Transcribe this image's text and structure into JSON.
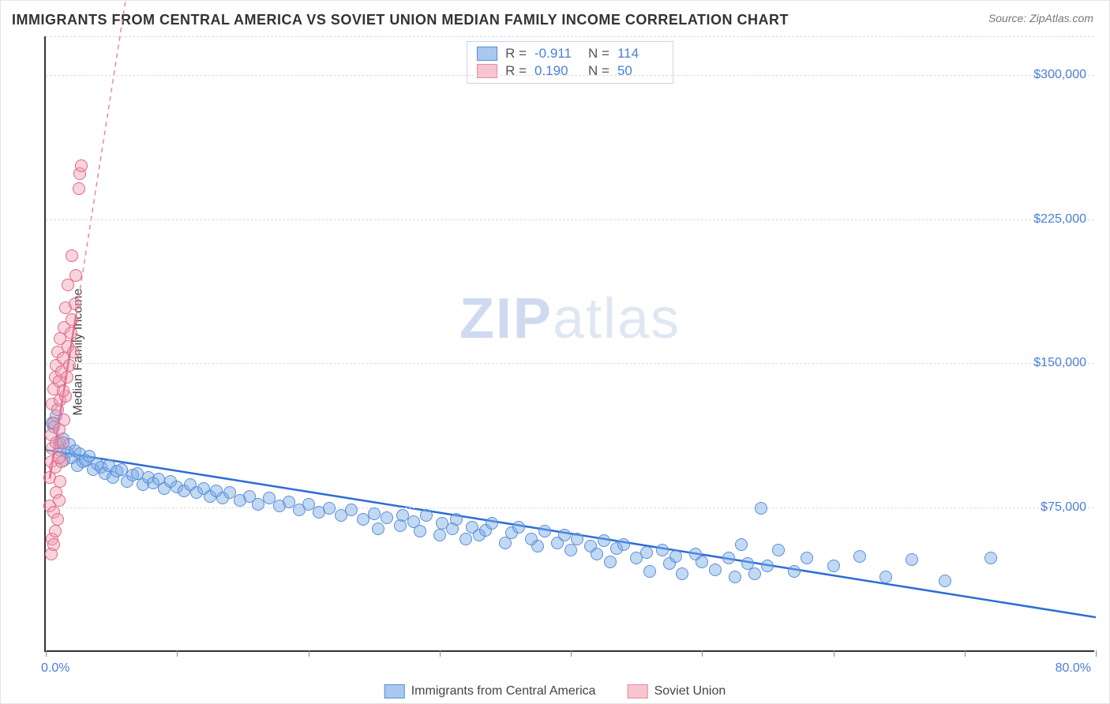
{
  "title": "IMMIGRANTS FROM CENTRAL AMERICA VS SOVIET UNION MEDIAN FAMILY INCOME CORRELATION CHART",
  "source": "Source: ZipAtlas.com",
  "ylabel": "Median Family Income",
  "watermark_a": "ZIP",
  "watermark_b": "atlas",
  "chart": {
    "type": "scatter",
    "xlim": [
      0,
      80
    ],
    "x_unit": "%",
    "ylim": [
      0,
      320000
    ],
    "x_ticks": [
      0,
      10,
      20,
      30,
      40,
      50,
      60,
      70,
      80
    ],
    "y_gridlines": [
      75000,
      150000,
      225000,
      300000,
      320000
    ],
    "y_tick_labels": [
      "$75,000",
      "$150,000",
      "$225,000",
      "$300,000"
    ],
    "xlim_labels": [
      "0.0%",
      "80.0%"
    ],
    "background_color": "#ffffff",
    "grid_color": "#dddddd",
    "axis_color": "#333333",
    "marker_radius": 8,
    "series": [
      {
        "name": "Immigrants from Central America",
        "color_fill": "#a8c8ed",
        "color_stroke": "#5b8dd6",
        "R": "-0.911",
        "N": "114",
        "trendline": {
          "x1": 0,
          "y1": 105000,
          "x2": 80,
          "y2": 18000,
          "dash": "none",
          "color": "#2d6ed6",
          "width": 2.5
        },
        "points": [
          [
            0.5,
            118000
          ],
          [
            0.6,
            116000
          ],
          [
            0.8,
            122000
          ],
          [
            1.0,
            108000
          ],
          [
            1.1,
            104000
          ],
          [
            1.3,
            110000
          ],
          [
            1.4,
            99000
          ],
          [
            1.6,
            103000
          ],
          [
            1.8,
            107000
          ],
          [
            2.0,
            100000
          ],
          [
            2.2,
            104000
          ],
          [
            2.4,
            96000
          ],
          [
            2.6,
            102000
          ],
          [
            2.8,
            98000
          ],
          [
            3.0,
            99000
          ],
          [
            3.3,
            101000
          ],
          [
            3.6,
            94000
          ],
          [
            3.9,
            97000
          ],
          [
            4.2,
            95000
          ],
          [
            4.5,
            92000
          ],
          [
            4.8,
            96000
          ],
          [
            5.1,
            90000
          ],
          [
            5.4,
            93000
          ],
          [
            5.8,
            94000
          ],
          [
            6.2,
            88000
          ],
          [
            6.6,
            91000
          ],
          [
            7.0,
            92000
          ],
          [
            7.4,
            86000
          ],
          [
            7.8,
            90000
          ],
          [
            8.2,
            87000
          ],
          [
            8.6,
            89000
          ],
          [
            9.0,
            84000
          ],
          [
            9.5,
            88000
          ],
          [
            10.0,
            85000
          ],
          [
            10.5,
            83000
          ],
          [
            11.0,
            86000
          ],
          [
            11.5,
            82000
          ],
          [
            12.0,
            84000
          ],
          [
            12.5,
            80000
          ],
          [
            13.0,
            83000
          ],
          [
            13.5,
            79000
          ],
          [
            14.0,
            82000
          ],
          [
            14.8,
            78000
          ],
          [
            15.5,
            80000
          ],
          [
            16.2,
            76000
          ],
          [
            17.0,
            79000
          ],
          [
            17.8,
            75000
          ],
          [
            18.5,
            77000
          ],
          [
            19.3,
            73000
          ],
          [
            20.0,
            76000
          ],
          [
            20.8,
            72000
          ],
          [
            21.6,
            74000
          ],
          [
            22.5,
            70000
          ],
          [
            23.3,
            73000
          ],
          [
            24.2,
            68000
          ],
          [
            25.0,
            71000
          ],
          [
            25.3,
            63000
          ],
          [
            26.0,
            69000
          ],
          [
            27.0,
            65000
          ],
          [
            27.2,
            70000
          ],
          [
            28.0,
            67000
          ],
          [
            28.5,
            62000
          ],
          [
            29.0,
            70000
          ],
          [
            30.0,
            60000
          ],
          [
            30.2,
            66000
          ],
          [
            31.0,
            63000
          ],
          [
            31.3,
            68000
          ],
          [
            32.0,
            58000
          ],
          [
            32.5,
            64000
          ],
          [
            33.0,
            60000
          ],
          [
            33.5,
            62500
          ],
          [
            34.0,
            66000
          ],
          [
            35.0,
            56000
          ],
          [
            35.5,
            61000
          ],
          [
            36.0,
            64000
          ],
          [
            37.0,
            58000
          ],
          [
            37.5,
            54000
          ],
          [
            38.0,
            62000
          ],
          [
            39.0,
            56000
          ],
          [
            39.5,
            60000
          ],
          [
            40.0,
            52000
          ],
          [
            40.5,
            58000
          ],
          [
            41.5,
            54000
          ],
          [
            42.0,
            50000
          ],
          [
            42.5,
            57000
          ],
          [
            43.0,
            46000
          ],
          [
            43.5,
            53000
          ],
          [
            44.0,
            55000
          ],
          [
            45.0,
            48000
          ],
          [
            45.8,
            51000
          ],
          [
            46.0,
            41000
          ],
          [
            47.0,
            52000
          ],
          [
            47.5,
            45000
          ],
          [
            48.0,
            49000
          ],
          [
            48.5,
            40000
          ],
          [
            49.5,
            50000
          ],
          [
            50.0,
            46000
          ],
          [
            51.0,
            42000
          ],
          [
            52.0,
            48000
          ],
          [
            52.5,
            38000
          ],
          [
            53.0,
            55000
          ],
          [
            53.5,
            45000
          ],
          [
            54.0,
            40000
          ],
          [
            54.5,
            74000
          ],
          [
            55.0,
            44000
          ],
          [
            55.8,
            52000
          ],
          [
            57.0,
            41000
          ],
          [
            58.0,
            48000
          ],
          [
            60.0,
            44000
          ],
          [
            62.0,
            49000
          ],
          [
            64.0,
            38000
          ],
          [
            66.0,
            47000
          ],
          [
            68.5,
            36000
          ],
          [
            72.0,
            48000
          ]
        ]
      },
      {
        "name": "Soviet Union",
        "color_fill": "#f7c5d0",
        "color_stroke": "#e06688",
        "R": "0.190",
        "N": "50",
        "trendline_solid": {
          "x1": 0.3,
          "y1": 90000,
          "x2": 2.3,
          "y2": 175000,
          "color": "#e24a76",
          "width": 2.5
        },
        "trendline_dash": {
          "x1": 2.3,
          "y1": 175000,
          "x2": 7.5,
          "y2": 400000,
          "color": "#e78ba2",
          "width": 1.5
        },
        "points": [
          [
            0.3,
            75000
          ],
          [
            0.3,
            90000
          ],
          [
            0.4,
            98000
          ],
          [
            0.4,
            112000
          ],
          [
            0.5,
            58000
          ],
          [
            0.5,
            105000
          ],
          [
            0.5,
            128000
          ],
          [
            0.6,
            72000
          ],
          [
            0.6,
            118000
          ],
          [
            0.6,
            136000
          ],
          [
            0.7,
            62000
          ],
          [
            0.7,
            95000
          ],
          [
            0.7,
            142000
          ],
          [
            0.8,
            82000
          ],
          [
            0.8,
            108000
          ],
          [
            0.8,
            148000
          ],
          [
            0.9,
            68000
          ],
          [
            0.9,
            125000
          ],
          [
            0.9,
            155000
          ],
          [
            1.0,
            78000
          ],
          [
            1.0,
            115000
          ],
          [
            1.0,
            140000
          ],
          [
            1.1,
            88000
          ],
          [
            1.1,
            130000
          ],
          [
            1.1,
            162000
          ],
          [
            1.2,
            98000
          ],
          [
            1.2,
            145000
          ],
          [
            1.3,
            108000
          ],
          [
            1.3,
            152000
          ],
          [
            1.4,
            120000
          ],
          [
            1.4,
            168000
          ],
          [
            1.5,
            132000
          ],
          [
            1.5,
            178000
          ],
          [
            1.6,
            142000
          ],
          [
            1.7,
            158000
          ],
          [
            1.7,
            190000
          ],
          [
            1.8,
            148000
          ],
          [
            1.9,
            165000
          ],
          [
            2.0,
            172000
          ],
          [
            2.0,
            205000
          ],
          [
            2.1,
            155000
          ],
          [
            2.2,
            180000
          ],
          [
            2.3,
            195000
          ],
          [
            2.5,
            240000
          ],
          [
            2.6,
            248000
          ],
          [
            2.7,
            252000
          ],
          [
            0.4,
            50000
          ],
          [
            0.6,
            55000
          ],
          [
            1.0,
            100000
          ],
          [
            1.3,
            135000
          ]
        ]
      }
    ]
  },
  "stats_legend": {
    "rows": [
      {
        "swatch": "blue",
        "r_label": "R =",
        "r_val": "-0.911",
        "n_label": "N =",
        "n_val": "114"
      },
      {
        "swatch": "pink",
        "r_label": "R =",
        "r_val": "0.190",
        "n_label": "N =",
        "n_val": "50"
      }
    ]
  },
  "bottom_legend": {
    "items": [
      {
        "swatch": "blue",
        "label": "Immigrants from Central America"
      },
      {
        "swatch": "pink",
        "label": "Soviet Union"
      }
    ]
  }
}
